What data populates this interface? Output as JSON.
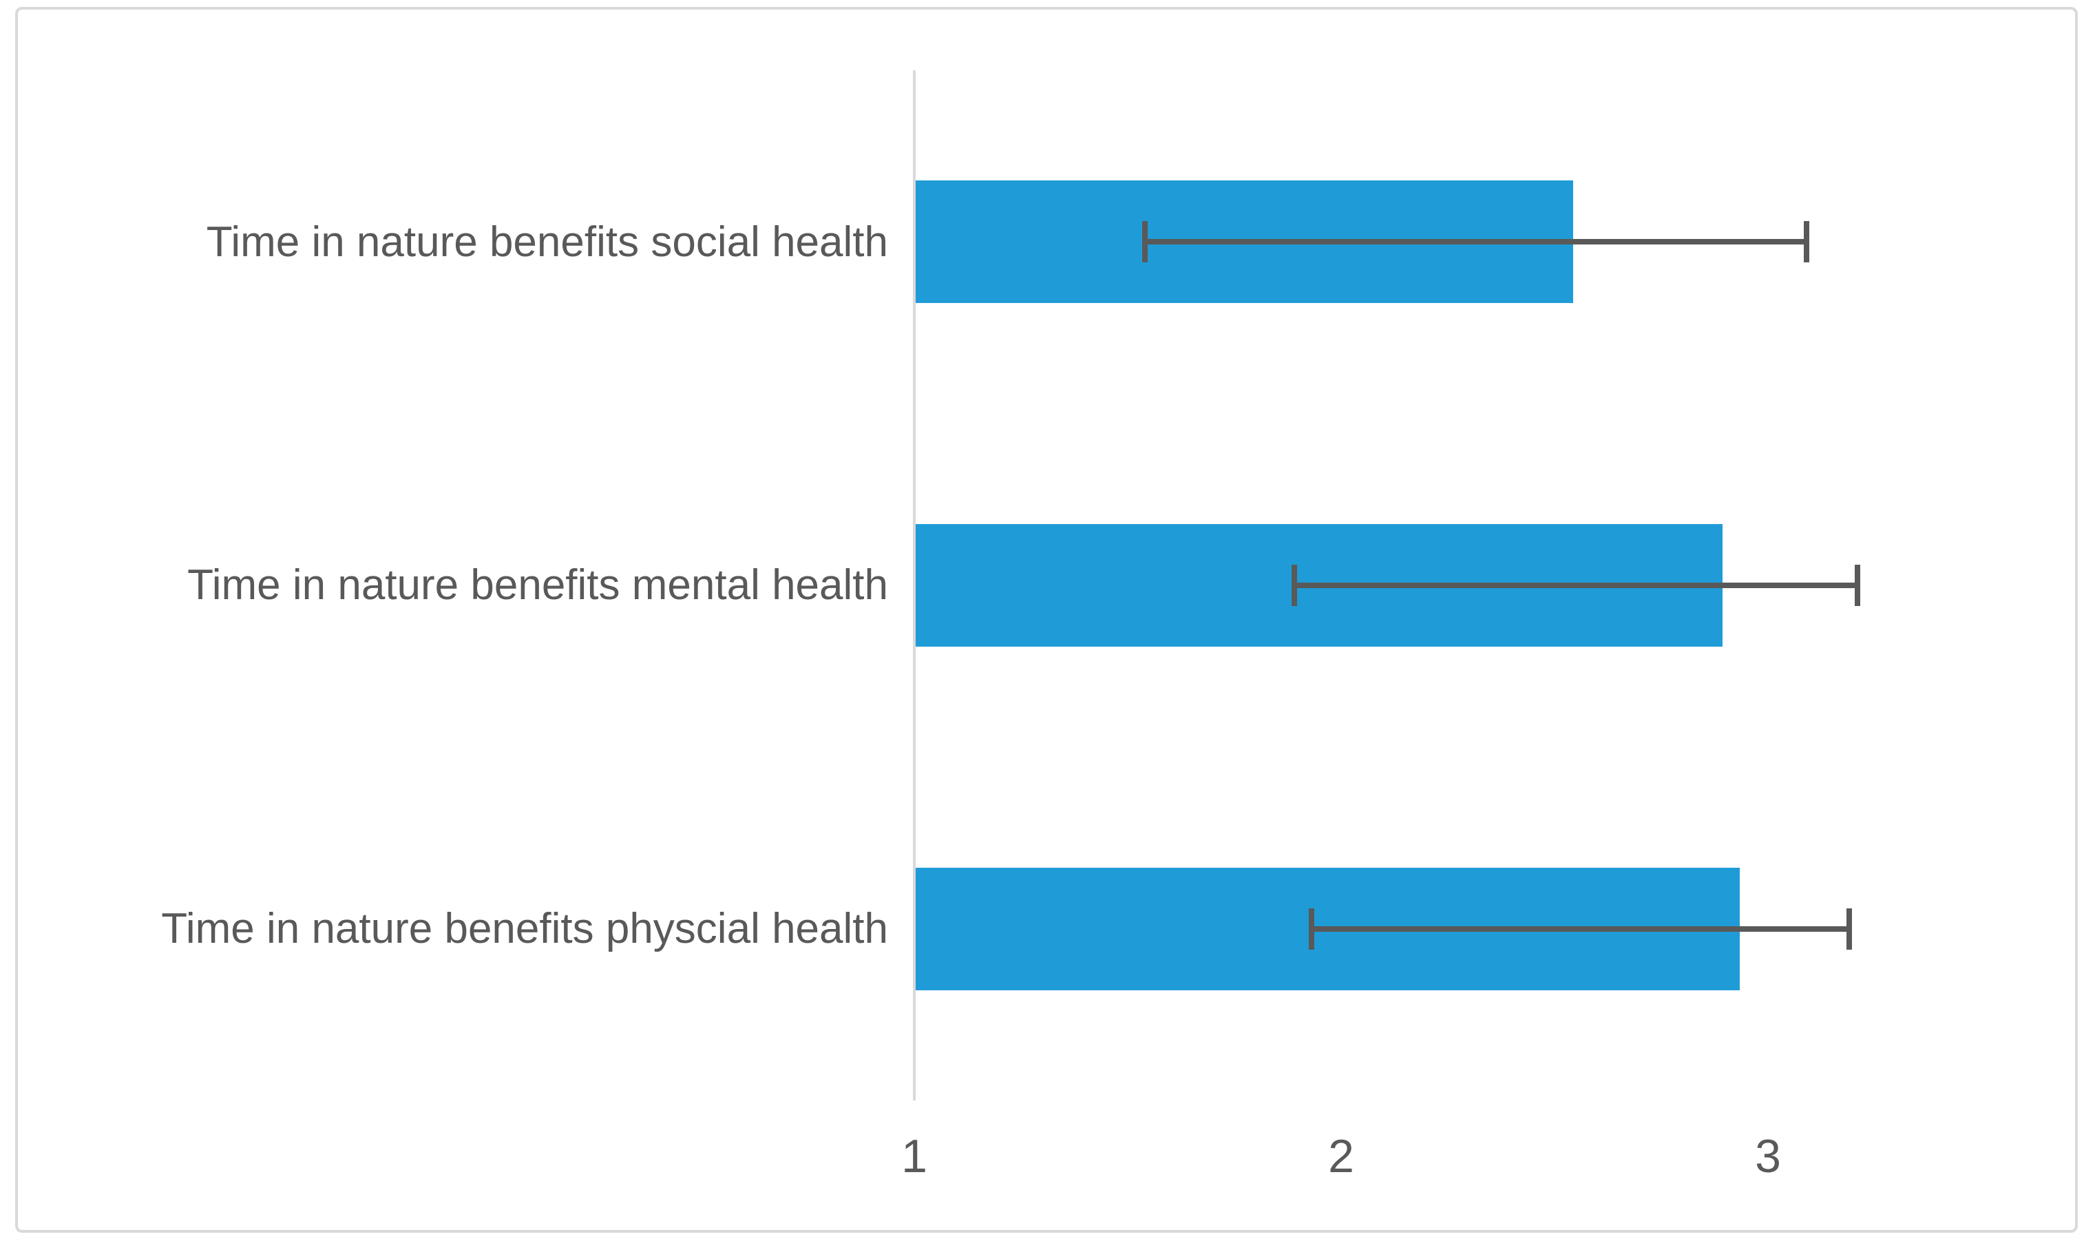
{
  "chart_data": {
    "type": "bar",
    "orientation": "horizontal",
    "title": "",
    "xlabel": "",
    "ylabel": "",
    "categories": [
      "Time in nature benefits social health",
      "Time in nature benefits mental health",
      "Time in nature benefits physcial health"
    ],
    "values": [
      2.54,
      2.89,
      2.93
    ],
    "error_low": [
      1.54,
      1.89,
      1.93
    ],
    "error_high": [
      3.09,
      3.21,
      3.19
    ],
    "xticks": [
      1,
      2,
      3
    ],
    "xtick_labels": [
      "1",
      "2",
      "3"
    ],
    "xlim": [
      1,
      3.6
    ],
    "grid": false,
    "legend": false,
    "colors": {
      "bar": "#1F9CD7",
      "error_bar": "#595959",
      "axis_line": "#D9D9D9",
      "tick_text": "#595959",
      "category_text": "#595959",
      "frame_border": "#D9D9D9",
      "background": "#FFFFFF"
    }
  }
}
